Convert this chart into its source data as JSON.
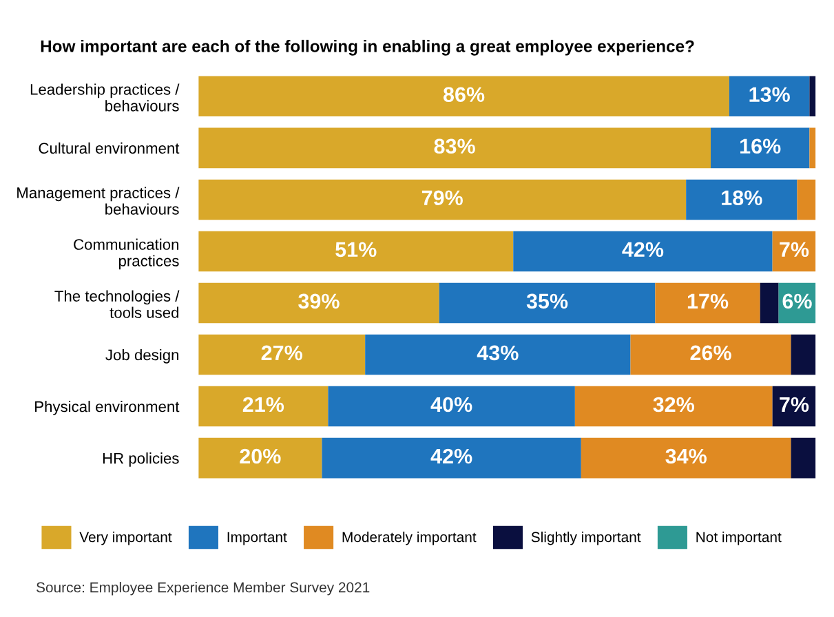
{
  "chart_data": {
    "type": "bar",
    "orientation": "horizontal",
    "stacked": true,
    "title": "How important are each of the following in enabling a great employee experience?",
    "categories": [
      "Leadership practices /\nbehaviours",
      "Cultural environment",
      "Management practices /\nbehaviours",
      "Communication\npractices",
      "The technologies /\ntools used",
      "Job design",
      "Physical environment",
      "HR policies"
    ],
    "series": [
      {
        "name": "Very important",
        "color": "#d9a82a",
        "values": [
          86,
          83,
          79,
          51,
          39,
          27,
          21,
          20
        ],
        "value_labels": [
          "86%",
          "83%",
          "79%",
          "51%",
          "39%",
          "27%",
          "21%",
          "20%"
        ]
      },
      {
        "name": "Important",
        "color": "#1f75be",
        "values": [
          13,
          16,
          18,
          42,
          35,
          43,
          40,
          42
        ],
        "value_labels": [
          "13%",
          "16%",
          "18%",
          "42%",
          "35%",
          "43%",
          "40%",
          "42%"
        ]
      },
      {
        "name": "Moderately important",
        "color": "#e08a22",
        "values": [
          0,
          1,
          3,
          7,
          17,
          26,
          32,
          34
        ],
        "value_labels": [
          null,
          null,
          null,
          "7%",
          "17%",
          "26%",
          "32%",
          "34%"
        ]
      },
      {
        "name": "Slightly important",
        "color": "#0a0f3f",
        "values": [
          1,
          0,
          0,
          0,
          3,
          4,
          7,
          4
        ],
        "value_labels": [
          null,
          null,
          null,
          null,
          null,
          null,
          "7%",
          null
        ]
      },
      {
        "name": "Not important",
        "color": "#2e9a94",
        "values": [
          0,
          0,
          0,
          0,
          6,
          0,
          0,
          0
        ],
        "value_labels": [
          null,
          null,
          null,
          null,
          "6%",
          null,
          null,
          null
        ]
      }
    ],
    "xlim": [
      0,
      100
    ],
    "tick_labels": "y",
    "grid": false,
    "legend": "bottom",
    "annotations": [
      "Source: Employee Experience Member Survey 2021"
    ]
  }
}
